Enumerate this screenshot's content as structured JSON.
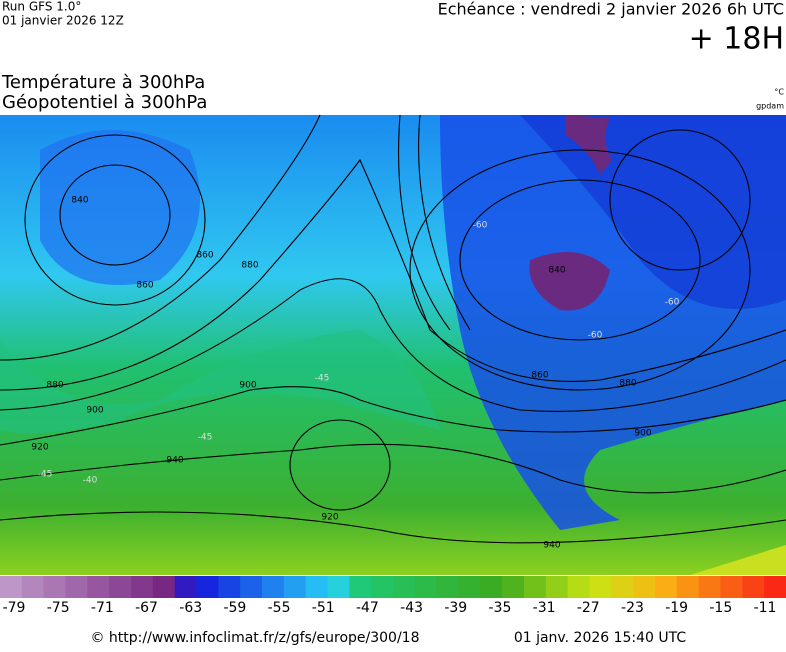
{
  "header": {
    "run": "Run GFS 1.0°",
    "run_date": "01 janvier 2026 12Z",
    "valid": "Echéance : vendredi 2 janvier 2026 6h UTC",
    "lead": "+ 18H"
  },
  "map": {
    "title_1": "Température à 300hPa",
    "title_2": "Géopotentiel à 300hPa",
    "unit_1": "°C",
    "unit_2": "gpdam",
    "contour_labels": [
      "840",
      "860",
      "880",
      "900",
      "920",
      "940",
      "860",
      "880",
      "900",
      "920",
      "940",
      "840",
      "860",
      "880",
      "900",
      "-60",
      "-60",
      "-60",
      "-45",
      "-45",
      "-45",
      "-40"
    ]
  },
  "legend": {
    "labels": [
      -79,
      -75,
      -71,
      -67,
      -63,
      -59,
      -55,
      -51,
      -47,
      -43,
      -39,
      -35,
      -31,
      -27,
      -23,
      -19,
      -15,
      -11
    ]
  },
  "footer": {
    "source": "© http://www.infoclimat.fr/z/gfs/europe/300/18",
    "generated": "01 janv. 2026 15:40 UTC"
  }
}
